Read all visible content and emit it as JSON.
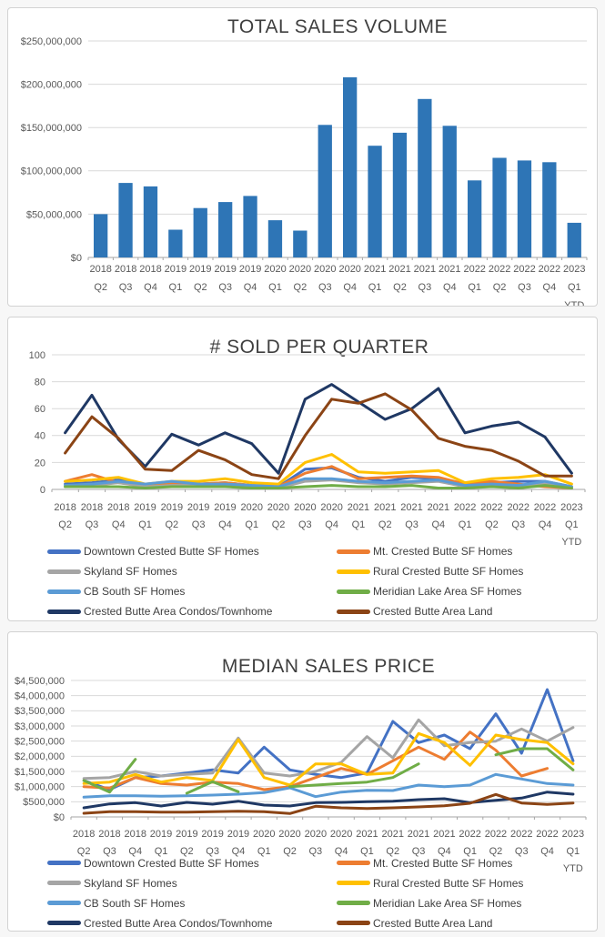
{
  "chart_data": [
    {
      "type": "bar",
      "title": "TOTAL SALES VOLUME",
      "categories": [
        "2018 Q2",
        "2018 Q3",
        "2018 Q4",
        "2019 Q1",
        "2019 Q2",
        "2019 Q3",
        "2019 Q4",
        "2020 Q1",
        "2020 Q2",
        "2020 Q3",
        "2020 Q4",
        "2021 Q1",
        "2021 Q2",
        "2021 Q3",
        "2021 Q4",
        "2022 Q1",
        "2022 Q2",
        "2022 Q3",
        "2022 Q4",
        "2023 Q1 YTD"
      ],
      "values": [
        50000000,
        86000000,
        82000000,
        32000000,
        57000000,
        64000000,
        71000000,
        43000000,
        31000000,
        153000000,
        208000000,
        129000000,
        144000000,
        183000000,
        152000000,
        89000000,
        115000000,
        112000000,
        110000000,
        40000000
      ],
      "ylim": [
        0,
        250000000
      ],
      "y_tick_labels": [
        "$0",
        "$50,000,000",
        "$100,000,000",
        "$150,000,000",
        "$200,000,000",
        "$250,000,000"
      ],
      "grid": true,
      "legend_position": "none",
      "bar_color": "#2E75B6"
    },
    {
      "type": "line",
      "title": "# SOLD PER QUARTER",
      "categories": [
        "2018 Q2",
        "2018 Q3",
        "2018 Q4",
        "2019 Q1",
        "2019 Q2",
        "2019 Q3",
        "2019 Q4",
        "2020 Q1",
        "2020 Q2",
        "2020 Q3",
        "2020 Q4",
        "2021 Q1",
        "2021 Q2",
        "2021 Q3",
        "2021 Q4",
        "2022 Q1",
        "2022 Q2",
        "2022 Q3",
        "2022 Q4",
        "2023 Q1 YTD"
      ],
      "ylim": [
        0,
        100
      ],
      "y_tick_labels": [
        "0",
        "20",
        "40",
        "60",
        "80",
        "100"
      ],
      "grid": true,
      "legend_position": "bottom",
      "series": [
        {
          "name": "Downtown Crested Butte SF Homes",
          "color": "#4472C4",
          "values": [
            4,
            5,
            7,
            3,
            4,
            4,
            5,
            3,
            2,
            15,
            16,
            9,
            6,
            9,
            8,
            4,
            5,
            6,
            6,
            2
          ]
        },
        {
          "name": "Mt. Crested Butte SF Homes",
          "color": "#ED7D31",
          "values": [
            6,
            11,
            5,
            3,
            4,
            4,
            5,
            3,
            2,
            12,
            17,
            8,
            9,
            10,
            9,
            4,
            6,
            4,
            2,
            1
          ]
        },
        {
          "name": "Skyland SF Homes",
          "color": "#A5A5A5",
          "values": [
            2,
            3,
            5,
            2,
            3,
            3,
            3,
            2,
            1,
            6,
            7,
            5,
            4,
            5,
            6,
            2,
            3,
            2,
            4,
            1
          ]
        },
        {
          "name": "Rural Crested Butte SF Homes",
          "color": "#FFC000",
          "values": [
            6,
            7,
            9,
            4,
            6,
            6,
            8,
            5,
            4,
            20,
            26,
            13,
            12,
            13,
            14,
            5,
            8,
            9,
            11,
            4
          ]
        },
        {
          "name": "CB South SF Homes",
          "color": "#5B9BD5",
          "values": [
            3,
            4,
            6,
            4,
            6,
            4,
            4,
            3,
            2,
            8,
            8,
            6,
            5,
            6,
            7,
            3,
            4,
            3,
            6,
            2
          ]
        },
        {
          "name": "Meridian Lake Area SF Homes",
          "color": "#70AD47",
          "values": [
            2,
            2,
            2,
            1,
            2,
            2,
            2,
            1,
            1,
            2,
            3,
            2,
            2,
            3,
            1,
            1,
            2,
            1,
            3,
            1
          ]
        },
        {
          "name": "Crested Butte Area Condos/Townhome",
          "color": "#1F3864",
          "values": [
            42,
            70,
            37,
            17,
            41,
            33,
            42,
            34,
            12,
            67,
            78,
            65,
            52,
            60,
            75,
            42,
            47,
            50,
            39,
            12
          ]
        },
        {
          "name": "Crested Butte Area Land",
          "color": "#8B4415",
          "values": [
            27,
            54,
            38,
            15,
            14,
            29,
            22,
            11,
            8,
            40,
            67,
            64,
            71,
            59,
            38,
            32,
            29,
            21,
            10,
            10
          ]
        }
      ]
    },
    {
      "type": "line",
      "title": "MEDIAN SALES PRICE",
      "categories": [
        "2018 Q2",
        "2018 Q3",
        "2018 Q4",
        "2019 Q1",
        "2019 Q2",
        "2019 Q3",
        "2019 Q4",
        "2020 Q1",
        "2020 Q2",
        "2020 Q3",
        "2020 Q4",
        "2021 Q1",
        "2021 Q2",
        "2021 Q3",
        "2021 Q4",
        "2022 Q1",
        "2022 Q2",
        "2022 Q3",
        "2022 Q4",
        "2023 Q1 YTD"
      ],
      "ylim": [
        0,
        4500000
      ],
      "y_tick_labels": [
        "$0",
        "$500,000",
        "$1,000,000",
        "$1,500,000",
        "$2,000,000",
        "$2,500,000",
        "$3,000,000",
        "$3,500,000",
        "$4,000,000",
        "$4,500,000"
      ],
      "grid": true,
      "legend_position": "bottom",
      "series": [
        {
          "name": "Downtown Crested Butte SF Homes",
          "color": "#4472C4",
          "values": [
            1200000,
            900000,
            1300000,
            1350000,
            1450000,
            1550000,
            1450000,
            2300000,
            1550000,
            1400000,
            1300000,
            1450000,
            3150000,
            2450000,
            2700000,
            2250000,
            3400000,
            2100000,
            4200000,
            1850000
          ]
        },
        {
          "name": "Mt. Crested Butte SF Homes",
          "color": "#ED7D31",
          "values": [
            1000000,
            950000,
            1300000,
            1100000,
            1050000,
            1150000,
            1100000,
            900000,
            1000000,
            1300000,
            1600000,
            1400000,
            1850000,
            2300000,
            1900000,
            2800000,
            2200000,
            1350000,
            1600000,
            null
          ]
        },
        {
          "name": "Skyland SF Homes",
          "color": "#A5A5A5",
          "values": [
            1270000,
            1300000,
            1500000,
            1350000,
            1400000,
            1450000,
            2600000,
            1450000,
            1350000,
            1500000,
            1800000,
            2650000,
            1950000,
            3200000,
            2350000,
            2450000,
            2500000,
            2900000,
            2500000,
            2950000
          ]
        },
        {
          "name": "Rural Crested Butte SF Homes",
          "color": "#FFC000",
          "values": [
            1100000,
            1150000,
            1400000,
            1150000,
            1300000,
            1200000,
            2550000,
            1300000,
            1050000,
            1750000,
            1750000,
            1400000,
            1450000,
            2750000,
            2450000,
            1700000,
            2700000,
            2550000,
            2450000,
            1750000
          ]
        },
        {
          "name": "CB South SF Homes",
          "color": "#5B9BD5",
          "values": [
            650000,
            700000,
            700000,
            680000,
            700000,
            720000,
            750000,
            800000,
            960000,
            670000,
            820000,
            880000,
            870000,
            1050000,
            1000000,
            1050000,
            1400000,
            1250000,
            1100000,
            1050000
          ]
        },
        {
          "name": "Meridian Lake Area SF Homes",
          "color": "#70AD47",
          "values": [
            1200000,
            820000,
            1900000,
            null,
            780000,
            1160000,
            830000,
            null,
            1000000,
            1050000,
            1100000,
            1150000,
            1300000,
            1750000,
            null,
            null,
            2050000,
            2250000,
            2250000,
            1550000
          ]
        },
        {
          "name": "Crested Butte Area Condos/Townhome",
          "color": "#1F3864",
          "values": [
            300000,
            430000,
            470000,
            360000,
            480000,
            420000,
            520000,
            390000,
            360000,
            470000,
            480000,
            500000,
            520000,
            570000,
            600000,
            470000,
            550000,
            620000,
            820000,
            750000
          ]
        },
        {
          "name": "Crested Butte Area Land",
          "color": "#8B4415",
          "values": [
            120000,
            175000,
            175000,
            160000,
            160000,
            175000,
            190000,
            175000,
            110000,
            350000,
            300000,
            280000,
            300000,
            330000,
            370000,
            450000,
            740000,
            460000,
            410000,
            460000
          ]
        }
      ]
    }
  ]
}
